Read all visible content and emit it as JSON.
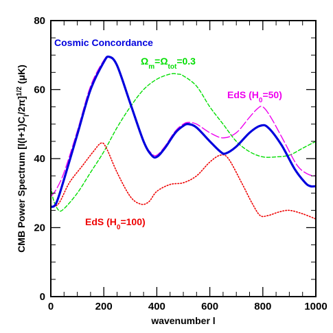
{
  "chart_data": {
    "type": "line",
    "xlabel": "wavenumber l",
    "ylabel": "CMB Power Spectrum [l(l+1)C_l/2π]^1/2 (μK)",
    "xlim": [
      0,
      1000
    ],
    "ylim": [
      0,
      80
    ],
    "x_ticks": [
      0,
      200,
      400,
      600,
      800,
      1000
    ],
    "y_ticks": [
      0,
      20,
      40,
      60,
      80
    ],
    "x_tick_labels": [
      "0",
      "200",
      "400",
      "600",
      "800",
      "1000"
    ],
    "y_tick_labels": [
      "0",
      "20",
      "40",
      "60",
      "80"
    ],
    "grid": false,
    "series": [
      {
        "name": "Cosmic Concordance",
        "color": "#0000dd",
        "style": "solid",
        "points": [
          [
            0,
            26
          ],
          [
            20,
            27
          ],
          [
            50,
            34
          ],
          [
            100,
            47
          ],
          [
            150,
            60
          ],
          [
            200,
            68
          ],
          [
            220,
            69.5
          ],
          [
            250,
            67
          ],
          [
            300,
            56
          ],
          [
            350,
            45
          ],
          [
            380,
            41
          ],
          [
            400,
            40.5
          ],
          [
            430,
            43
          ],
          [
            470,
            47.5
          ],
          [
            500,
            49.5
          ],
          [
            520,
            50
          ],
          [
            550,
            49
          ],
          [
            600,
            45
          ],
          [
            640,
            42
          ],
          [
            660,
            41.5
          ],
          [
            700,
            43.5
          ],
          [
            750,
            47.5
          ],
          [
            790,
            49.5
          ],
          [
            820,
            49
          ],
          [
            870,
            44
          ],
          [
            920,
            37
          ],
          [
            960,
            33
          ],
          [
            980,
            32
          ],
          [
            1000,
            32
          ]
        ]
      },
      {
        "name": "Ω_m=Ω_tot=0.3",
        "color": "#00dd00",
        "style": "dashed",
        "points": [
          [
            0,
            32
          ],
          [
            10,
            28
          ],
          [
            30,
            25
          ],
          [
            50,
            25.5
          ],
          [
            100,
            30
          ],
          [
            150,
            36
          ],
          [
            200,
            42
          ],
          [
            250,
            49
          ],
          [
            300,
            55
          ],
          [
            350,
            60
          ],
          [
            400,
            63
          ],
          [
            450,
            64.5
          ],
          [
            480,
            64.5
          ],
          [
            500,
            64
          ],
          [
            550,
            61
          ],
          [
            600,
            55
          ],
          [
            650,
            50
          ],
          [
            700,
            45
          ],
          [
            750,
            42
          ],
          [
            800,
            40.5
          ],
          [
            850,
            40.5
          ],
          [
            900,
            41
          ],
          [
            950,
            43
          ],
          [
            1000,
            45
          ]
        ]
      },
      {
        "name": "EdS (H_0=50)",
        "color": "#ee00ee",
        "style": "long-dash",
        "points": [
          [
            0,
            29
          ],
          [
            20,
            31
          ],
          [
            50,
            36
          ],
          [
            100,
            48
          ],
          [
            150,
            61
          ],
          [
            200,
            68.5
          ],
          [
            220,
            69.5
          ],
          [
            250,
            67
          ],
          [
            300,
            56
          ],
          [
            350,
            45
          ],
          [
            380,
            41.5
          ],
          [
            400,
            41
          ],
          [
            430,
            43.5
          ],
          [
            470,
            48
          ],
          [
            500,
            50
          ],
          [
            520,
            50.5
          ],
          [
            550,
            50
          ],
          [
            600,
            47.5
          ],
          [
            650,
            46
          ],
          [
            700,
            47.5
          ],
          [
            750,
            52
          ],
          [
            780,
            54.5
          ],
          [
            800,
            55
          ],
          [
            830,
            52
          ],
          [
            880,
            45
          ],
          [
            930,
            38
          ],
          [
            970,
            35.5
          ],
          [
            1000,
            35
          ]
        ]
      },
      {
        "name": "EdS (H_0=100)",
        "color": "#ee0000",
        "style": "dotted",
        "points": [
          [
            0,
            26
          ],
          [
            30,
            27
          ],
          [
            70,
            33
          ],
          [
            120,
            38
          ],
          [
            160,
            42
          ],
          [
            190,
            44.5
          ],
          [
            210,
            43
          ],
          [
            250,
            36
          ],
          [
            300,
            29
          ],
          [
            340,
            26.8
          ],
          [
            370,
            27.5
          ],
          [
            400,
            30.5
          ],
          [
            450,
            32.5
          ],
          [
            500,
            33
          ],
          [
            550,
            35
          ],
          [
            600,
            39
          ],
          [
            640,
            41
          ],
          [
            670,
            40
          ],
          [
            720,
            33
          ],
          [
            760,
            27
          ],
          [
            790,
            23.5
          ],
          [
            820,
            23.5
          ],
          [
            860,
            24.5
          ],
          [
            900,
            25
          ],
          [
            950,
            24
          ],
          [
            1000,
            22.5
          ]
        ]
      }
    ],
    "annotations": [
      {
        "text": "Cosmic Concordance",
        "series": "Cosmic Concordance"
      },
      {
        "text": "Ω_m=Ω_tot=0.3",
        "series": "Ω_m=Ω_tot=0.3"
      },
      {
        "text": "EdS (H_0=50)",
        "series": "EdS (H_0=50)"
      },
      {
        "text": "EdS (H_0=100)",
        "series": "EdS (H_0=100)"
      }
    ]
  }
}
